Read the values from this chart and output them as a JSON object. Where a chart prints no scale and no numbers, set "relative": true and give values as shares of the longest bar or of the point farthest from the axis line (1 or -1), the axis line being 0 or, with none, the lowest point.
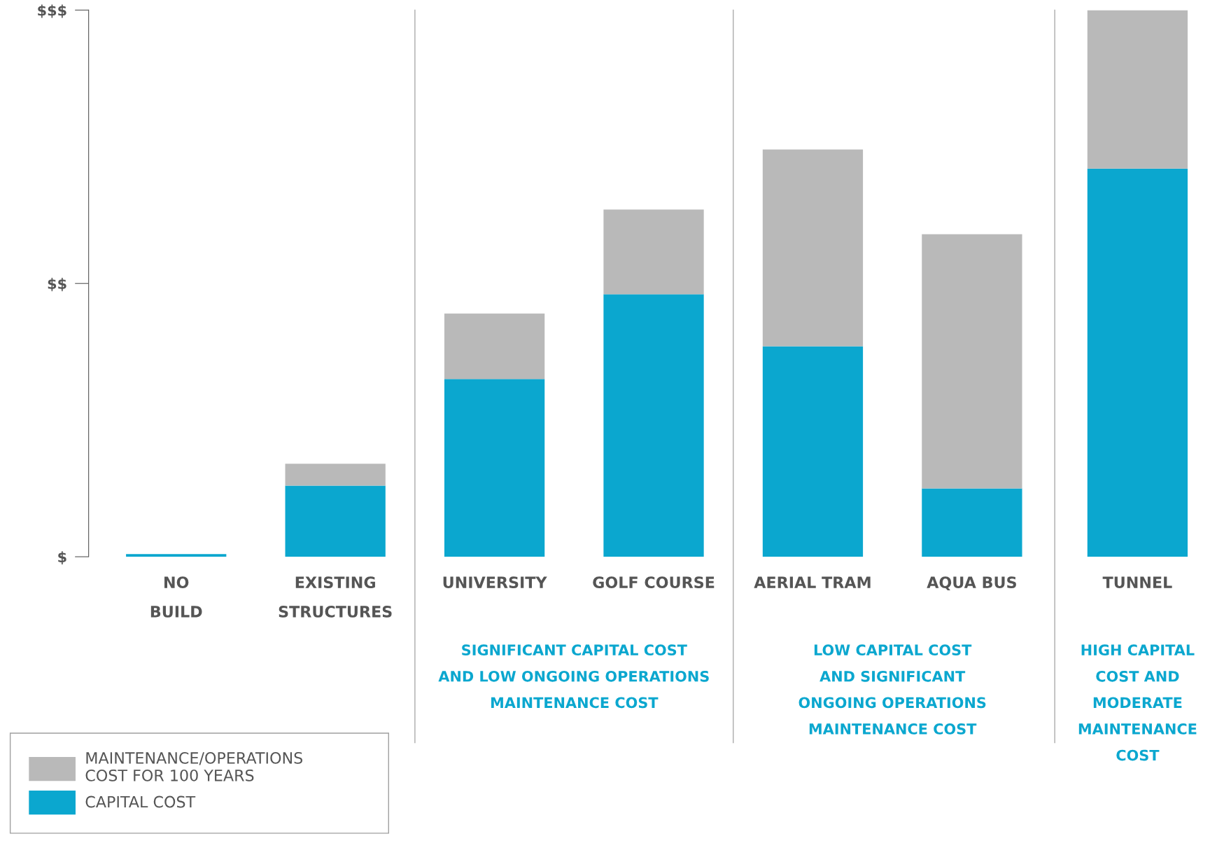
{
  "chart_data": {
    "type": "bar",
    "stacked": true,
    "relative": true,
    "categories": [
      "NO\nBUILD",
      "EXISTING\nSTRUCTURES",
      "UNIVERSITY",
      "GOLF COURSE",
      "AERIAL TRAM",
      "AQUA BUS",
      "TUNNEL"
    ],
    "series": [
      {
        "name": "CAPITAL COST",
        "color": "#0ba7cf",
        "values": [
          0.005,
          0.13,
          0.325,
          0.48,
          0.385,
          0.125,
          0.71
        ]
      },
      {
        "name": "MAINTENANCE/OPERATIONS\nCOST FOR 100 YEARS",
        "color": "#b9b9b9",
        "values": [
          0,
          0.04,
          0.12,
          0.155,
          0.36,
          0.465,
          0.29
        ]
      }
    ],
    "annotations": [
      "$",
      "$$",
      "$$$",
      "SIGNIFICANT CAPITAL COST\nAND LOW ONGOING OPERATIONS\nMAINTENANCE COST",
      "LOW CAPITAL COST\nAND SIGNIFICANT\nONGOING OPERATIONS\nMAINTENANCE COST",
      "HIGH CAPITAL\nCOST AND\nMODERATE\nMAINTENANCE\nCOST"
    ],
    "legend": "bottom left",
    "grid": false
  }
}
